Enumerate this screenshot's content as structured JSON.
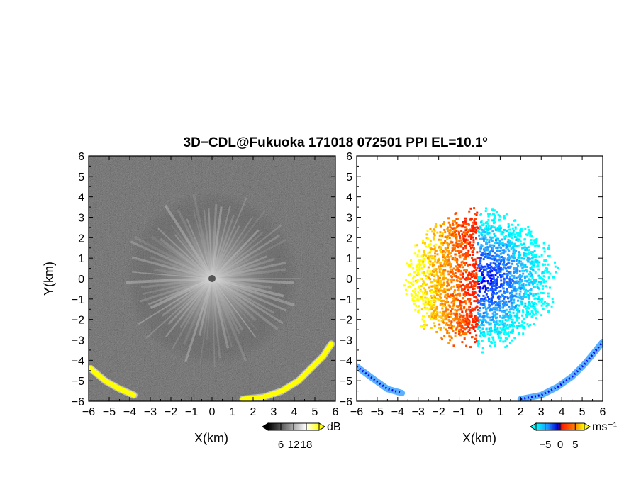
{
  "chart_data": {
    "title": "3D−CDL@Fukuoka 171018 072501 PPI EL=10.1º",
    "panels": [
      {
        "name": "left",
        "type": "heatmap",
        "quantity": "SNR",
        "colormap": "grayscale with yellow high values",
        "xlabel": "X(km)",
        "ylabel": "Y(km)",
        "xlim": [
          -6,
          6
        ],
        "ylim": [
          -6,
          6
        ],
        "xticks": [
          "−6",
          "−5",
          "−4",
          "−3",
          "−2",
          "−1",
          "0",
          "1",
          "2",
          "3",
          "4",
          "5",
          "6"
        ],
        "yticks": [
          "−6",
          "−5",
          "−4",
          "−3",
          "−2",
          "−1",
          "0",
          "1",
          "2",
          "3",
          "4",
          "5",
          "6"
        ],
        "colorbar": {
          "ticks": [
            "6",
            "12",
            "18"
          ],
          "tick_values": [
            6,
            12,
            18
          ],
          "range": [
            0,
            24
          ],
          "unit": "dB"
        },
        "features": {
          "radial_echo_radius_km": 4,
          "radar_center_km": [
            0,
            0
          ],
          "yellow_arc_points_km": [
            [
              -5.9,
              -4.4
            ],
            [
              -5.2,
              -5.0
            ],
            [
              -4.5,
              -5.4
            ],
            [
              -3.8,
              -5.7
            ],
            [
              1.5,
              -5.9
            ],
            [
              2.5,
              -5.8
            ],
            [
              3.4,
              -5.5
            ],
            [
              4.2,
              -5.0
            ],
            [
              4.8,
              -4.4
            ],
            [
              5.4,
              -3.8
            ],
            [
              5.8,
              -3.2
            ]
          ]
        }
      },
      {
        "name": "right",
        "type": "heatmap",
        "quantity": "Doppler velocity",
        "colormap": "diverging blue-red",
        "xlabel": "X(km)",
        "ylabel": "",
        "xlim": [
          -6,
          6
        ],
        "ylim": [
          -6,
          6
        ],
        "xticks": [
          "−6",
          "−5",
          "−4",
          "−3",
          "−2",
          "−1",
          "0",
          "1",
          "2",
          "3",
          "4",
          "5",
          "6"
        ],
        "yticks": [
          "−6",
          "−5",
          "−4",
          "−3",
          "−2",
          "−1",
          "0",
          "1",
          "2",
          "3",
          "4",
          "5",
          "6"
        ],
        "colorbar": {
          "ticks": [
            "−5",
            "0",
            "5"
          ],
          "tick_values": [
            -5,
            0,
            5
          ],
          "range": [
            -8,
            8
          ],
          "unit": "ms⁻¹"
        },
        "features": {
          "echo_radius_km": 3.2,
          "positive_side": "west (x<0)",
          "negative_side": "east (x>0)",
          "blue_arc_points_km": [
            [
              -6.0,
              -4.3
            ],
            [
              -5.2,
              -4.9
            ],
            [
              -4.5,
              -5.4
            ],
            [
              -3.8,
              -5.6
            ],
            [
              2.0,
              -5.9
            ],
            [
              3.0,
              -5.7
            ],
            [
              3.8,
              -5.3
            ],
            [
              4.5,
              -4.8
            ],
            [
              5.1,
              -4.2
            ],
            [
              5.6,
              -3.6
            ],
            [
              6.0,
              -3.1
            ]
          ]
        }
      }
    ]
  }
}
